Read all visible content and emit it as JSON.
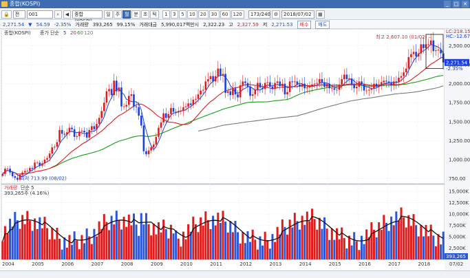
{
  "window": {
    "title": "종합(KOSPI)"
  },
  "toolbar": {
    "market": "전",
    "code": "001",
    "name": "종합(KOSPI)",
    "periods": [
      "일",
      "주",
      "월",
      "분",
      "초",
      "틱"
    ],
    "selected_period": "월",
    "intervals": [
      "1",
      "3",
      "5",
      "10",
      "20",
      "30",
      "60",
      "120"
    ],
    "count": "173/240",
    "date": "2018/07/02"
  },
  "quote": {
    "price": "2,271.54",
    "change": "54.59",
    "change_pct": "-2.35%",
    "volume_label": "거래량",
    "volume": "393,265",
    "volume_ratio": "99.15%",
    "amount_label": "거래대금",
    "amount": "5,990,017백만시",
    "open": "2,322.23",
    "high_label": "고",
    "high": "2,327.59",
    "low_label": "저",
    "low": "2,271.53",
    "buy": "매수",
    "sell": "매도"
  },
  "price_panel": {
    "legend_name": "종합(KOSPI)",
    "ma_label": "종가 단순",
    "ma_periods": [
      "5",
      "20",
      "60",
      "120"
    ],
    "ma_colors": [
      "#1a3fe0",
      "#e01b1b",
      "#13a013",
      "#7a7a7a"
    ],
    "lc_label": "LC:218.15",
    "hc_label": "HC:-12.67",
    "price_tag": "2,271.54",
    "pct_tag": "-2.35%",
    "high_note": "최고 2,607.10 (01/02)",
    "low_note": "최저 713.99 (08/02)",
    "y_ticks": [
      "2,500.00",
      "2,250.00",
      "2,000.00",
      "1,750.00",
      "1,500.00",
      "1,250.00",
      "1,000.00",
      "750.00"
    ]
  },
  "volume_panel": {
    "legend_name": "거래량",
    "ma_label": "단순 5",
    "volume_text": "393,265주 (4.16%)",
    "tag": "393,265",
    "tag2": "4.16%",
    "y_ticks": [
      "15,000K",
      "12,500K",
      "10,000K",
      "7,500K",
      "5,000K",
      "2,500K"
    ]
  },
  "x_labels": [
    "2004",
    "2005",
    "2006",
    "2007",
    "2008",
    "2009",
    "2010",
    "2011",
    "2012",
    "2013",
    "2014",
    "2015",
    "2016",
    "2017",
    "2018",
    "07/02"
  ],
  "chart_data": {
    "type": "candlestick",
    "x_start": "2004/01",
    "interval": "month",
    "close": [
      810,
      880,
      880,
      830,
      780,
      760,
      735,
      800,
      830,
      850,
      850,
      890,
      880,
      960,
      960,
      920,
      950,
      1000,
      1020,
      1080,
      1160,
      1170,
      1230,
      1390,
      1340,
      1330,
      1360,
      1420,
      1400,
      1300,
      1310,
      1370,
      1380,
      1360,
      1290,
      1390,
      1440,
      1400,
      1470,
      1550,
      1640,
      1750,
      1900,
      1930,
      1850,
      2040,
      1900,
      1950,
      1700,
      1700,
      1720,
      1840,
      1860,
      1700,
      1690,
      1580,
      1450,
      1110,
      1070,
      1120,
      1160,
      1200,
      1300,
      1420,
      1490,
      1610,
      1550,
      1600,
      1680,
      1630,
      1620,
      1640,
      1640,
      1690,
      1700,
      1740,
      1720,
      1790,
      1800,
      1860,
      1910,
      1920,
      2030,
      2060,
      2100,
      2030,
      2100,
      2200,
      2110,
      2130,
      1880,
      1900,
      1850,
      1940,
      1860,
      1820,
      1980,
      2030,
      2010,
      1960,
      1840,
      1860,
      1920,
      2010,
      1950,
      1930,
      2010,
      2020,
      1960,
      1930,
      2010,
      2030,
      1970,
      2000,
      1860,
      1890,
      2030,
      2020,
      2030,
      1990,
      1960,
      2000,
      1940,
      1950,
      1960,
      1990,
      2000,
      2010,
      2060,
      2020,
      1960,
      2000,
      1940,
      1940,
      1920,
      1920,
      1990,
      2060,
      2120,
      2060,
      2070,
      1990,
      1940,
      1960,
      2030,
      1990,
      1910,
      1910,
      1920,
      1940,
      2000,
      1960,
      1990,
      2020,
      2040,
      2030,
      2010,
      1980,
      2030,
      2020,
      2080,
      2100,
      2150,
      2200,
      2350,
      2390,
      2420,
      2360,
      2400,
      2520,
      2470,
      2520,
      2520,
      2570,
      2430,
      2440,
      2450,
      2400,
      2280
    ],
    "ma_periods": [
      5,
      20,
      60,
      120
    ],
    "volume_ylim": [
      0,
      15000
    ],
    "price_ylim": [
      700,
      2650
    ]
  }
}
